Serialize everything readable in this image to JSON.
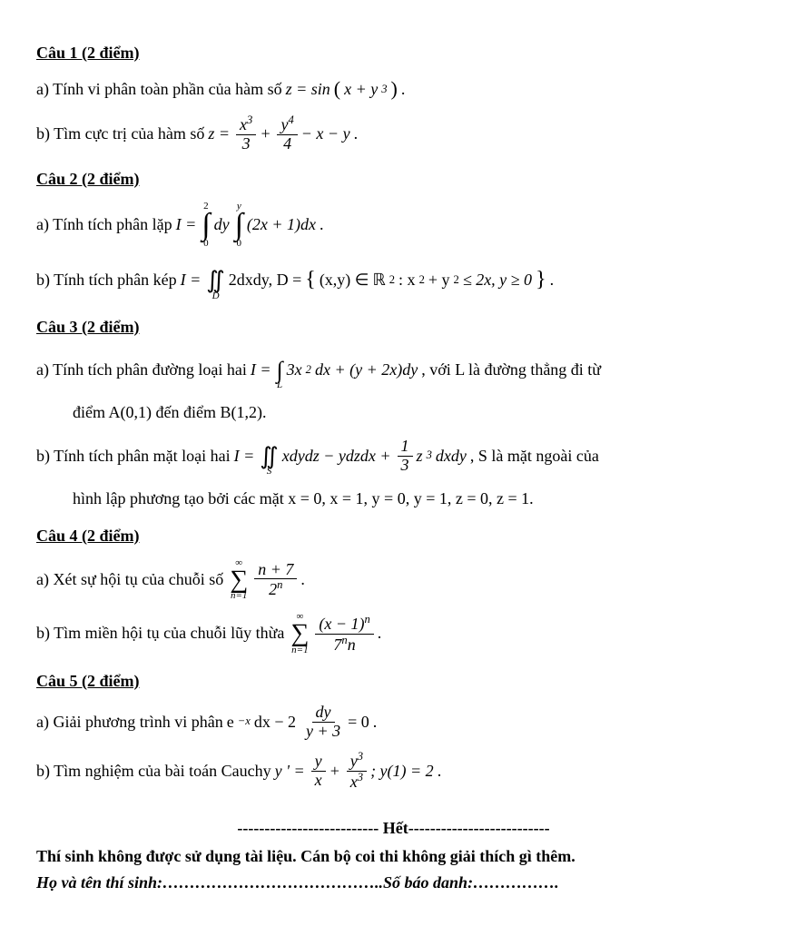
{
  "q1": {
    "title": "Câu 1 (2 điểm)",
    "a_pre": "a) Tính vi phân toàn phần của hàm số ",
    "a_math1": "z = sin",
    "a_math2": "(",
    "a_math3": "x + y",
    "a_exp": "3",
    "a_math4": ")",
    "a_post": ".",
    "b_pre": "b) Tìm cực trị của hàm số ",
    "b_z": "z =",
    "b_f1n": "x",
    "b_f1n_exp": "3",
    "b_f1d": "3",
    "b_plus": "+",
    "b_f2n": "y",
    "b_f2n_exp": "4",
    "b_f2d": "4",
    "b_tail": "− x − y",
    "b_post": "."
  },
  "q2": {
    "title": "Câu 2 (2 điểm)",
    "a_pre": "a)  Tính tích phân lặp ",
    "a_I": "I =",
    "a_i1_top": "2",
    "a_i1_bot": "0",
    "a_mid": "dy",
    "a_i2_top": "y",
    "a_i2_bot": "0",
    "a_body": "(2x + 1)dx",
    "a_post": ".",
    "b_pre": "b) Tính tích phân kép ",
    "b_I": "I =",
    "b_int_sub": "D",
    "b_body": "2dxdy,  D = ",
    "b_set_open": "{",
    "b_set_body1": "(x,y) ∈ ",
    "b_R": "ℝ",
    "b_R_exp": "2",
    "b_set_body2": ": x",
    "b_x2": "2",
    "b_set_body3": " + y",
    "b_y2": "2",
    "b_set_body4": " ≤ 2x, y ≥ 0",
    "b_set_close": "}",
    "b_post": "."
  },
  "q3": {
    "title": "Câu 3 (2 điểm)",
    "a_pre": "a) Tính tích phân đường loại hai ",
    "a_I": "I =",
    "a_int_sub": "L",
    "a_body": "3x",
    "a_sq": "2",
    "a_body2": "dx + (y + 2x)dy",
    "a_post": ", với L là đường thẳng đi từ",
    "a_line2": "điểm A(0,1) đến điểm B(1,2).",
    "b_pre": "b) Tính tích phân mặt loại hai ",
    "b_I": "I =",
    "b_int_sub": "S",
    "b_body1": "xdydz − ydzdx +",
    "b_f_n": "1",
    "b_f_d": "3",
    "b_body2": "z",
    "b_z3": "3",
    "b_body3": "dxdy",
    "b_post": ", S là mặt  ngoài của",
    "b_line2": "hình lập phương tạo bởi các mặt x = 0, x = 1, y = 0, y = 1, z = 0, z = 1."
  },
  "q4": {
    "title": "Câu 4 (2 điểm)",
    "a_pre": "a) Xét sự hội tụ của chuỗi số ",
    "a_top": "∞",
    "a_bot": "n=1",
    "a_num": "n + 7",
    "a_den1": "2",
    "a_den_exp": "n",
    "a_post": ".",
    "b_pre": "b) Tìm miền hội tụ của chuỗi lũy thừa ",
    "b_top": "∞",
    "b_bot": "n=1",
    "b_num1": "(x − 1)",
    "b_num_exp": "n",
    "b_den1": "7",
    "b_den_exp": "n",
    "b_den2": "n",
    "b_post": "."
  },
  "q5": {
    "title": "Câu 5 (2 điểm)",
    "a_pre": "a) Giải phương trình vi phân  ",
    "a_body1": "e",
    "a_exp1": "−x",
    "a_body2": "dx − 2",
    "a_num": "dy",
    "a_den": "y + 3",
    "a_body3": "= 0",
    "a_post": ".",
    "b_pre": "b) Tìm nghiệm của bài toán Cauchy   ",
    "b_body1": "y ' =",
    "b_f1n": "y",
    "b_f1d": "x",
    "b_plus": "+",
    "b_f2n": "y",
    "b_f2n_exp": "3",
    "b_f2d": "x",
    "b_f2d_exp": "3",
    "b_body2": ";  y(1) = 2",
    "b_post": "."
  },
  "end": {
    "sep_pre": "-------------------------- ",
    "sep_word": "Hết",
    "sep_post": "--------------------------",
    "note": "Thí sinh không được sử dụng tài liệu. Cán bộ coi thi không giải thích gì thêm.",
    "sign1": "Họ và tên thí sinh:",
    "dots1": "…………………………………..",
    "sign2": "Số báo danh:",
    "dots2": "……………."
  }
}
